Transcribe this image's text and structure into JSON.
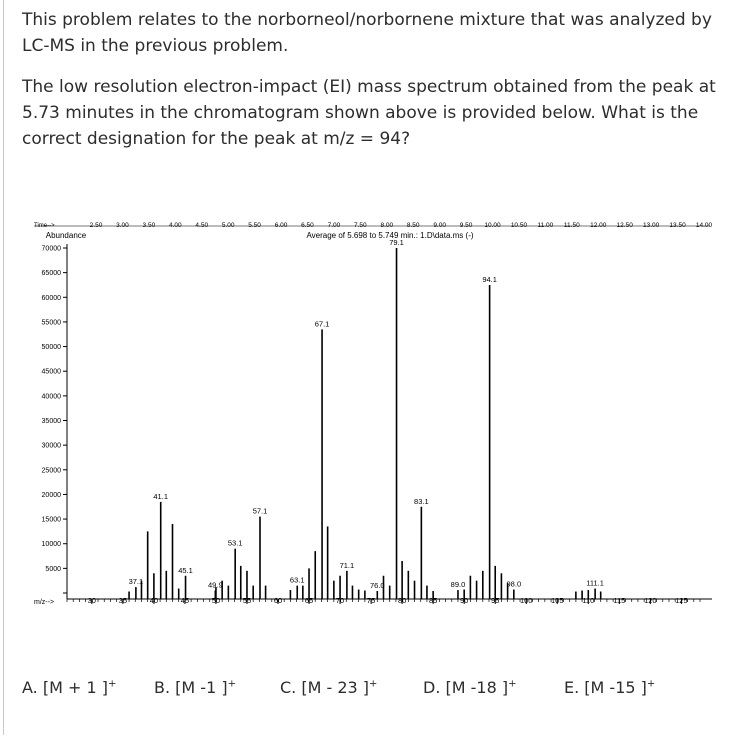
{
  "question": {
    "intro": "This problem relates to the norborneol/norbornene mixture that was analyzed by LC-MS in the previous problem.",
    "prompt": "The low resolution electron-impact (EI) mass spectrum obtained from the peak at 5.73 minutes in the chromatogram shown above is provided below.  What is the correct designation for the peak at m/z = 94?"
  },
  "chart_data": {
    "type": "bar",
    "title": "Average of 5.698 to 5.749 min.: 1.D\\data.ms (-)",
    "xlabel": "m/z-->",
    "ylabel": "Abundance",
    "top_axis_label": "Time-->",
    "top_axis_ticks": [
      "2.50",
      "3.00",
      "3.50",
      "4.00",
      "4.50",
      "5.00",
      "5.50",
      "6.00",
      "6.50",
      "7.00",
      "7.50",
      "8.00",
      "8.50",
      "9.00",
      "9.50",
      "10.00",
      "10.50",
      "11.00",
      "11.50",
      "12.00",
      "12.50",
      "13.00",
      "13.50",
      "14.00"
    ],
    "xlim": [
      26,
      128
    ],
    "ylim": [
      0,
      70000
    ],
    "x_ticks": [
      30,
      35,
      40,
      45,
      50,
      55,
      60,
      65,
      70,
      75,
      80,
      85,
      90,
      95,
      100,
      105,
      110,
      115,
      120,
      125
    ],
    "y_ticks": [
      5000,
      10000,
      15000,
      20000,
      25000,
      30000,
      35000,
      40000,
      45000,
      50000,
      55000,
      60000,
      65000,
      70000
    ],
    "y_tick_labels": [
      "5000",
      "10000",
      "15000",
      "20000",
      "25000",
      "30000",
      "35000",
      "40000",
      "45000",
      "50000",
      "55000",
      "60000",
      "65000",
      "70000"
    ],
    "peaks": [
      {
        "mz": 36.0,
        "intensity": 300
      },
      {
        "mz": 37.1,
        "intensity": 1200
      },
      {
        "mz": 38.0,
        "intensity": 2500
      },
      {
        "mz": 39.0,
        "intensity": 12500
      },
      {
        "mz": 40.0,
        "intensity": 4000
      },
      {
        "mz": 41.1,
        "intensity": 18500
      },
      {
        "mz": 42.0,
        "intensity": 4500
      },
      {
        "mz": 43.0,
        "intensity": 14000
      },
      {
        "mz": 44.0,
        "intensity": 900
      },
      {
        "mz": 45.1,
        "intensity": 3500
      },
      {
        "mz": 49.9,
        "intensity": 500
      },
      {
        "mz": 50.0,
        "intensity": 1200
      },
      {
        "mz": 51.0,
        "intensity": 2500
      },
      {
        "mz": 52.0,
        "intensity": 1500
      },
      {
        "mz": 53.1,
        "intensity": 9000
      },
      {
        "mz": 54.0,
        "intensity": 5500
      },
      {
        "mz": 55.0,
        "intensity": 4500
      },
      {
        "mz": 56.0,
        "intensity": 1500
      },
      {
        "mz": 57.1,
        "intensity": 15500
      },
      {
        "mz": 58.0,
        "intensity": 1500
      },
      {
        "mz": 62.0,
        "intensity": 600
      },
      {
        "mz": 63.1,
        "intensity": 1500
      },
      {
        "mz": 64.0,
        "intensity": 1500
      },
      {
        "mz": 65.0,
        "intensity": 5000
      },
      {
        "mz": 66.0,
        "intensity": 8500
      },
      {
        "mz": 67.1,
        "intensity": 53500
      },
      {
        "mz": 68.0,
        "intensity": 13500
      },
      {
        "mz": 69.0,
        "intensity": 2500
      },
      {
        "mz": 70.0,
        "intensity": 3500
      },
      {
        "mz": 71.1,
        "intensity": 4500
      },
      {
        "mz": 72.0,
        "intensity": 1500
      },
      {
        "mz": 73.0,
        "intensity": 700
      },
      {
        "mz": 74.0,
        "intensity": 500
      },
      {
        "mz": 76.0,
        "intensity": 400
      },
      {
        "mz": 77.0,
        "intensity": 3500
      },
      {
        "mz": 78.0,
        "intensity": 1500
      },
      {
        "mz": 79.1,
        "intensity": 70000
      },
      {
        "mz": 80.0,
        "intensity": 6500
      },
      {
        "mz": 81.0,
        "intensity": 4500
      },
      {
        "mz": 82.0,
        "intensity": 2500
      },
      {
        "mz": 83.1,
        "intensity": 17500
      },
      {
        "mz": 84.0,
        "intensity": 1500
      },
      {
        "mz": 85.0,
        "intensity": 400
      },
      {
        "mz": 89.0,
        "intensity": 600
      },
      {
        "mz": 90.0,
        "intensity": 700
      },
      {
        "mz": 91.0,
        "intensity": 3500
      },
      {
        "mz": 92.0,
        "intensity": 2500
      },
      {
        "mz": 93.0,
        "intensity": 4500
      },
      {
        "mz": 94.1,
        "intensity": 62500
      },
      {
        "mz": 95.0,
        "intensity": 5500
      },
      {
        "mz": 96.0,
        "intensity": 4000
      },
      {
        "mz": 97.0,
        "intensity": 2000
      },
      {
        "mz": 98.0,
        "intensity": 700
      },
      {
        "mz": 108.0,
        "intensity": 300
      },
      {
        "mz": 109.0,
        "intensity": 500
      },
      {
        "mz": 110.0,
        "intensity": 600
      },
      {
        "mz": 111.1,
        "intensity": 900
      },
      {
        "mz": 112.0,
        "intensity": 300
      }
    ],
    "peak_labels": [
      {
        "mz": 37.1,
        "intensity": 1200,
        "text": "37.1"
      },
      {
        "mz": 41.1,
        "intensity": 18500,
        "text": "41.1"
      },
      {
        "mz": 45.1,
        "intensity": 3500,
        "text": "45.1"
      },
      {
        "mz": 49.9,
        "intensity": 500,
        "text": "49.9"
      },
      {
        "mz": 53.1,
        "intensity": 9000,
        "text": "53.1"
      },
      {
        "mz": 57.1,
        "intensity": 15500,
        "text": "57.1"
      },
      {
        "mz": 63.1,
        "intensity": 1500,
        "text": "63.1"
      },
      {
        "mz": 67.1,
        "intensity": 53500,
        "text": "67.1"
      },
      {
        "mz": 71.1,
        "intensity": 4500,
        "text": "71.1"
      },
      {
        "mz": 76.0,
        "intensity": 400,
        "text": "76.0"
      },
      {
        "mz": 79.1,
        "intensity": 70000,
        "text": "79.1"
      },
      {
        "mz": 83.1,
        "intensity": 17500,
        "text": "83.1"
      },
      {
        "mz": 89.0,
        "intensity": 600,
        "text": "89.0"
      },
      {
        "mz": 94.1,
        "intensity": 62500,
        "text": "94.1"
      },
      {
        "mz": 98.0,
        "intensity": 700,
        "text": "98.0"
      },
      {
        "mz": 111.1,
        "intensity": 900,
        "text": "111.1"
      }
    ],
    "grid": false,
    "bar_color": "#000000"
  },
  "choices": [
    {
      "letter": "A.",
      "text": "[M + 1 ]",
      "sup": "+"
    },
    {
      "letter": "B.",
      "text": "[M -1 ]",
      "sup": "+"
    },
    {
      "letter": "C.",
      "text": "[M - 23 ]",
      "sup": "+"
    },
    {
      "letter": "D.",
      "text": "[M -18 ]",
      "sup": "+"
    },
    {
      "letter": "E.",
      "text": "[M -15 ]",
      "sup": "+"
    }
  ]
}
